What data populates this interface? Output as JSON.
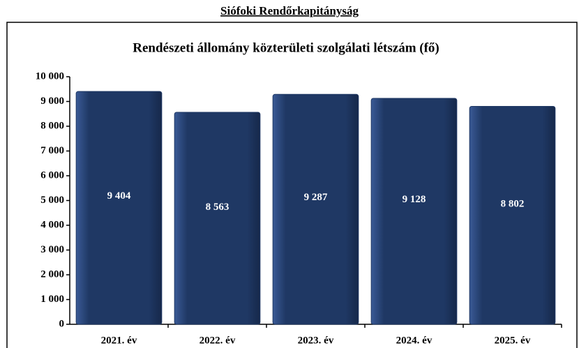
{
  "page_title": "Siófoki Rendőrkapitányság",
  "chart_data": {
    "type": "bar",
    "title": "Rendészeti állomány közterületi szolgálati létszám (fő)",
    "categories": [
      "2021. év",
      "2022. év",
      "2023. év",
      "2024. év",
      "2025. év"
    ],
    "values": [
      9404,
      8563,
      9287,
      9128,
      8802
    ],
    "value_labels": [
      "9 404",
      "8 563",
      "9 287",
      "9 128",
      "8 802"
    ],
    "color": "#1f3864",
    "ylim": [
      0,
      10000
    ],
    "yticks": [
      0,
      {
        "value": 1000,
        "label": "1 000"
      },
      {
        "value": 2000,
        "label": "2 000"
      },
      {
        "value": 3000,
        "label": "3 000"
      },
      {
        "value": 4000,
        "label": "4 000"
      },
      {
        "value": 5000,
        "label": "5 000"
      },
      {
        "value": 6000,
        "label": "6 000"
      },
      {
        "value": 7000,
        "label": "7 000"
      },
      {
        "value": 8000,
        "label": "8 000"
      },
      {
        "value": 9000,
        "label": "9 000"
      },
      {
        "value": 10000,
        "label": "10 000"
      }
    ],
    "grid": false
  }
}
